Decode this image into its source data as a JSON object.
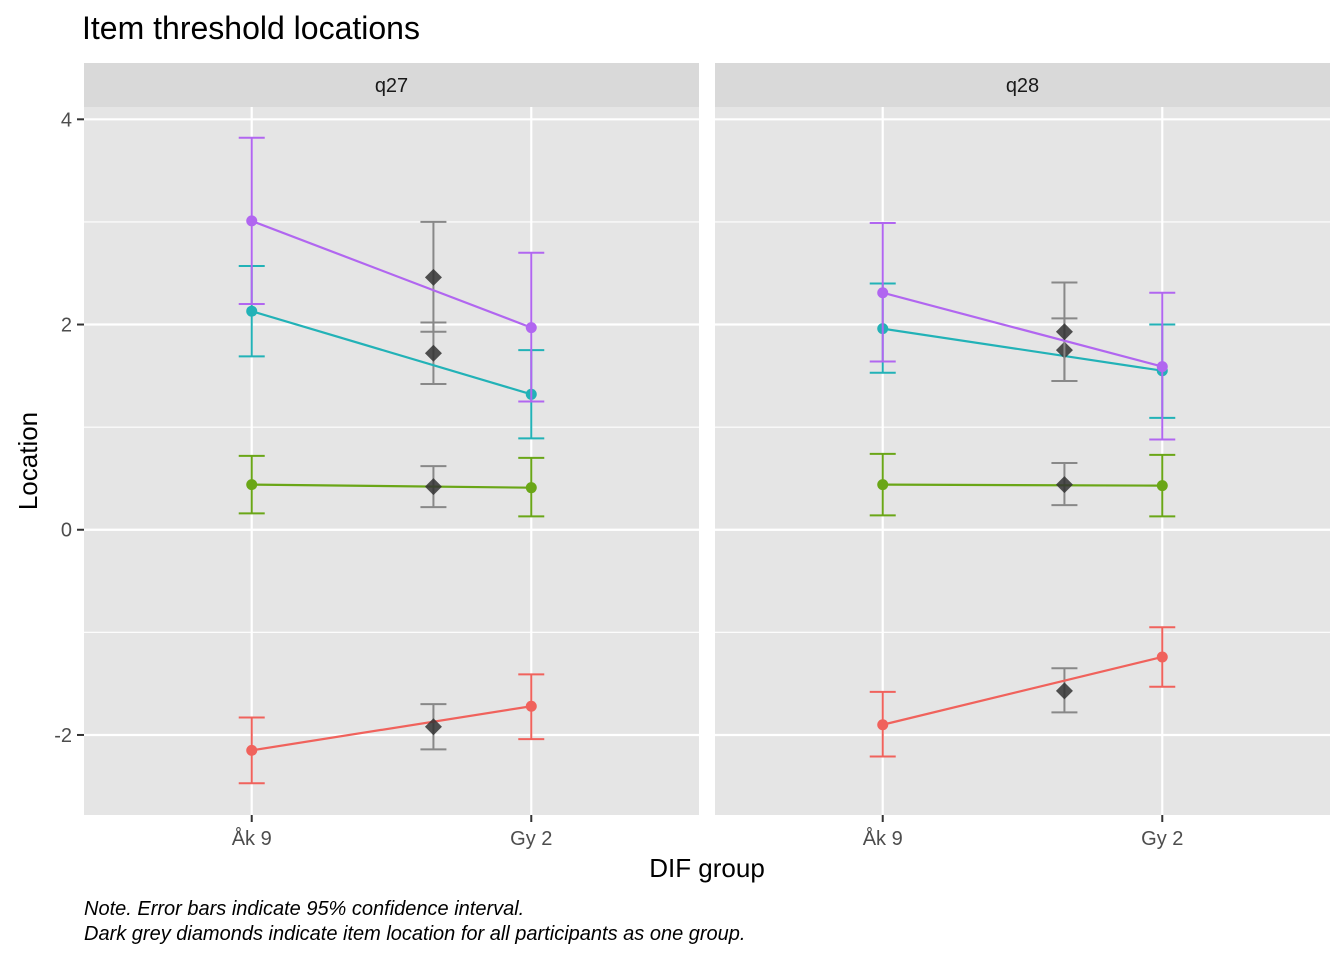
{
  "chart_data": {
    "type": "line",
    "title": "Item threshold locations",
    "xlabel": "DIF group",
    "ylabel": "Location",
    "ylim": [
      -2.78,
      4.12
    ],
    "y_ticks": [
      4,
      2,
      0,
      -2
    ],
    "y_tick_labels": [
      "4",
      "2",
      "0",
      "-2"
    ],
    "x_categories": [
      "Åk 9",
      "Gy 2"
    ],
    "overall_x_position": 1.65,
    "grid": true,
    "colors": {
      "panel_bg": "#e5e5e5",
      "strip_bg": "#d9d9d9",
      "grid": "#ffffff",
      "overall_marker": "#333333",
      "overall_errorbar": "#888888",
      "threshold_1": "#f0625c",
      "threshold_2": "#6aa617",
      "threshold_3": "#22b2b7",
      "threshold_4": "#b166f0"
    },
    "panels": [
      {
        "name": "q27",
        "series": [
          {
            "color": "#f0625c",
            "values": [
              -2.15,
              -1.72
            ],
            "lower": [
              -2.47,
              -2.04
            ],
            "upper": [
              -1.83,
              -1.41
            ],
            "overall": {
              "value": -1.92,
              "lower": -2.14,
              "upper": -1.7
            }
          },
          {
            "color": "#6aa617",
            "values": [
              0.44,
              0.41
            ],
            "lower": [
              0.16,
              0.13
            ],
            "upper": [
              0.72,
              0.7
            ],
            "overall": {
              "value": 0.42,
              "lower": 0.22,
              "upper": 0.62
            }
          },
          {
            "color": "#22b2b7",
            "values": [
              2.13,
              1.32
            ],
            "lower": [
              1.69,
              0.89
            ],
            "upper": [
              2.57,
              1.75
            ],
            "overall": {
              "value": 1.72,
              "lower": 1.42,
              "upper": 2.02
            }
          },
          {
            "color": "#b166f0",
            "values": [
              3.01,
              1.97
            ],
            "lower": [
              2.2,
              1.25
            ],
            "upper": [
              3.82,
              2.7
            ],
            "overall": {
              "value": 2.46,
              "lower": 1.93,
              "upper": 3.0
            }
          }
        ]
      },
      {
        "name": "q28",
        "series": [
          {
            "color": "#f0625c",
            "values": [
              -1.9,
              -1.24
            ],
            "lower": [
              -2.21,
              -1.53
            ],
            "upper": [
              -1.58,
              -0.95
            ],
            "overall": {
              "value": -1.57,
              "lower": -1.78,
              "upper": -1.35
            }
          },
          {
            "color": "#6aa617",
            "values": [
              0.44,
              0.43
            ],
            "lower": [
              0.14,
              0.13
            ],
            "upper": [
              0.74,
              0.73
            ],
            "overall": {
              "value": 0.44,
              "lower": 0.24,
              "upper": 0.65
            }
          },
          {
            "color": "#22b2b7",
            "values": [
              1.96,
              1.55
            ],
            "lower": [
              1.53,
              1.09
            ],
            "upper": [
              2.4,
              2.0
            ],
            "overall": {
              "value": 1.75,
              "lower": 1.45,
              "upper": 2.06
            }
          },
          {
            "color": "#b166f0",
            "values": [
              2.31,
              1.59
            ],
            "lower": [
              1.64,
              0.88
            ],
            "upper": [
              2.99,
              2.31
            ],
            "overall": {
              "value": 1.93,
              "lower": 1.45,
              "upper": 2.41
            }
          }
        ]
      }
    ],
    "notes": [
      "Note. Error bars indicate 95% confidence interval.",
      "Dark grey diamonds indicate item location for all participants as one group."
    ]
  }
}
